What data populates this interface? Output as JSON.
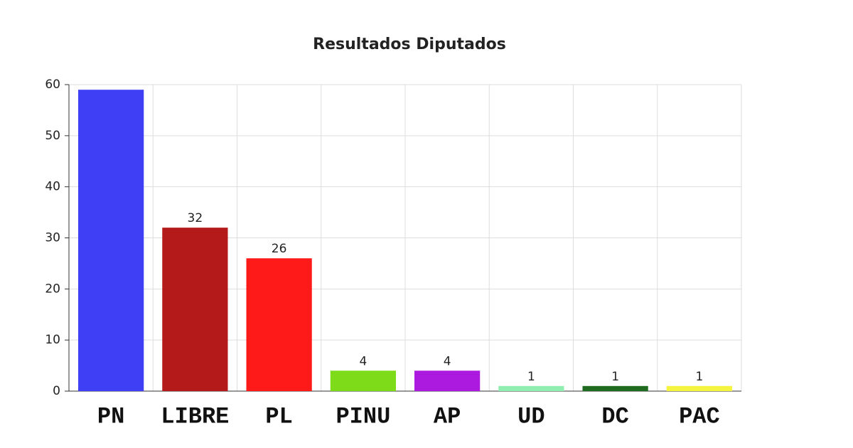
{
  "chart_data": {
    "type": "bar",
    "title": "Resultados Diputados",
    "categories": [
      "PN",
      "LIBRE",
      "PL",
      "PINU",
      "AP",
      "UD",
      "DC",
      "PAC"
    ],
    "values": [
      59,
      32,
      26,
      4,
      4,
      1,
      1,
      1
    ],
    "colors": [
      "#3f3ff5",
      "#b41a1a",
      "#ff1a1a",
      "#7ddb1a",
      "#ac1ae0",
      "#90eeb0",
      "#1f6b1f",
      "#f5f540"
    ],
    "ylim": [
      0,
      60
    ],
    "yticks": [
      0,
      10,
      20,
      30,
      40,
      50,
      60
    ],
    "grid": true
  }
}
